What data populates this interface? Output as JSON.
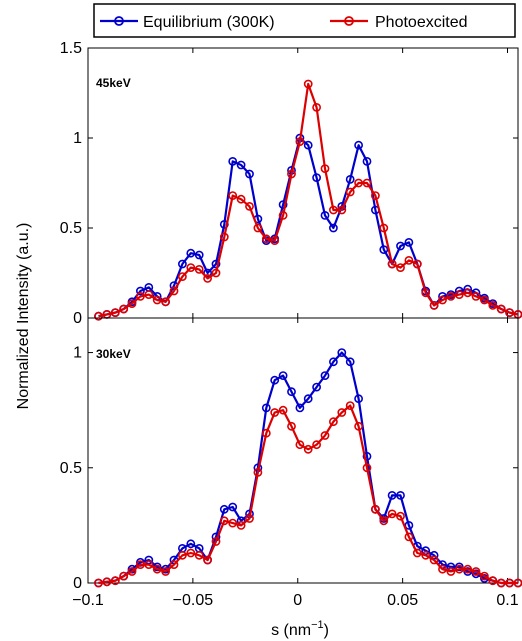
{
  "legend": {
    "series": [
      {
        "name": "Equilibrium (300K)",
        "color": "#0000cc"
      },
      {
        "name": "Photoexcited",
        "color": "#dd0000"
      }
    ]
  },
  "ylabel": "Normalized Intensity (a.u.)",
  "xlabel_main": "s (nm",
  "xlabel_sup": "−1",
  "xlabel_close": ")",
  "chart_data": [
    {
      "type": "line",
      "panel_label": "45keV",
      "xlim": [
        -0.1,
        0.105
      ],
      "ylim": [
        0,
        1.5
      ],
      "yticks": [
        0,
        0.5,
        1,
        1.5
      ],
      "ytick_labels": [
        "0",
        "0.5",
        "1",
        "1.5"
      ],
      "x": [
        -0.095,
        -0.091,
        -0.087,
        -0.083,
        -0.079,
        -0.075,
        -0.071,
        -0.067,
        -0.063,
        -0.059,
        -0.055,
        -0.051,
        -0.047,
        -0.043,
        -0.039,
        -0.035,
        -0.031,
        -0.027,
        -0.023,
        -0.019,
        -0.015,
        -0.011,
        -0.007,
        -0.003,
        0.001,
        0.005,
        0.009,
        0.013,
        0.017,
        0.021,
        0.025,
        0.029,
        0.033,
        0.037,
        0.041,
        0.045,
        0.049,
        0.053,
        0.057,
        0.061,
        0.065,
        0.069,
        0.073,
        0.077,
        0.081,
        0.085,
        0.089,
        0.093,
        0.097,
        0.101,
        0.105
      ],
      "series": [
        {
          "name": "Equilibrium (300K)",
          "color": "#0000cc",
          "values": [
            0.01,
            0.02,
            0.03,
            0.05,
            0.09,
            0.15,
            0.17,
            0.12,
            0.09,
            0.18,
            0.3,
            0.36,
            0.35,
            0.25,
            0.3,
            0.52,
            0.87,
            0.85,
            0.8,
            0.55,
            0.43,
            0.44,
            0.63,
            0.82,
            1.0,
            0.96,
            0.78,
            0.57,
            0.5,
            0.62,
            0.77,
            0.96,
            0.87,
            0.6,
            0.38,
            0.3,
            0.4,
            0.42,
            0.3,
            0.15,
            0.07,
            0.12,
            0.13,
            0.15,
            0.16,
            0.14,
            0.11,
            0.08,
            0.05,
            0.03,
            0.02
          ]
        },
        {
          "name": "Photoexcited",
          "color": "#dd0000",
          "values": [
            0.01,
            0.02,
            0.03,
            0.05,
            0.08,
            0.12,
            0.13,
            0.1,
            0.09,
            0.15,
            0.23,
            0.28,
            0.27,
            0.22,
            0.25,
            0.45,
            0.68,
            0.66,
            0.62,
            0.5,
            0.44,
            0.43,
            0.57,
            0.8,
            0.98,
            1.3,
            1.17,
            0.83,
            0.6,
            0.6,
            0.7,
            0.75,
            0.75,
            0.68,
            0.5,
            0.3,
            0.28,
            0.32,
            0.3,
            0.14,
            0.07,
            0.1,
            0.12,
            0.13,
            0.14,
            0.12,
            0.1,
            0.07,
            0.05,
            0.03,
            0.02
          ]
        }
      ]
    },
    {
      "type": "line",
      "panel_label": "30keV",
      "xlim": [
        -0.1,
        0.105
      ],
      "ylim": [
        0,
        1.15
      ],
      "yticks": [
        0,
        0.5,
        1
      ],
      "ytick_labels": [
        "0",
        "0.5",
        "1"
      ],
      "xticks": [
        -0.1,
        -0.05,
        0,
        0.05,
        0.1
      ],
      "xtick_labels": [
        "−0.1",
        "−0.05",
        "0",
        "0.05",
        "0.1"
      ],
      "x": [
        -0.095,
        -0.091,
        -0.087,
        -0.083,
        -0.079,
        -0.075,
        -0.071,
        -0.067,
        -0.063,
        -0.059,
        -0.055,
        -0.051,
        -0.047,
        -0.043,
        -0.039,
        -0.035,
        -0.031,
        -0.027,
        -0.023,
        -0.019,
        -0.015,
        -0.011,
        -0.007,
        -0.003,
        0.001,
        0.005,
        0.009,
        0.013,
        0.017,
        0.021,
        0.025,
        0.029,
        0.033,
        0.037,
        0.041,
        0.045,
        0.049,
        0.053,
        0.057,
        0.061,
        0.065,
        0.069,
        0.073,
        0.077,
        0.081,
        0.085,
        0.089,
        0.093,
        0.097,
        0.101,
        0.105
      ],
      "series": [
        {
          "name": "Equilibrium (300K)",
          "color": "#0000cc",
          "values": [
            0.0,
            0.005,
            0.01,
            0.03,
            0.06,
            0.09,
            0.1,
            0.07,
            0.06,
            0.1,
            0.15,
            0.17,
            0.15,
            0.1,
            0.2,
            0.32,
            0.33,
            0.27,
            0.3,
            0.5,
            0.76,
            0.88,
            0.9,
            0.83,
            0.76,
            0.8,
            0.85,
            0.9,
            0.96,
            1.0,
            0.96,
            0.8,
            0.55,
            0.32,
            0.28,
            0.38,
            0.38,
            0.25,
            0.16,
            0.14,
            0.12,
            0.08,
            0.07,
            0.07,
            0.05,
            0.04,
            0.02,
            0.01,
            0.0,
            0.0,
            0.0
          ]
        },
        {
          "name": "Photoexcited",
          "color": "#dd0000",
          "values": [
            0.0,
            0.005,
            0.01,
            0.03,
            0.05,
            0.08,
            0.08,
            0.06,
            0.05,
            0.08,
            0.12,
            0.13,
            0.12,
            0.1,
            0.18,
            0.27,
            0.26,
            0.25,
            0.28,
            0.48,
            0.65,
            0.74,
            0.75,
            0.68,
            0.6,
            0.58,
            0.6,
            0.64,
            0.7,
            0.74,
            0.77,
            0.68,
            0.5,
            0.32,
            0.27,
            0.3,
            0.29,
            0.2,
            0.13,
            0.12,
            0.1,
            0.06,
            0.05,
            0.06,
            0.06,
            0.05,
            0.03,
            0.01,
            0.0,
            0.0,
            0.0
          ]
        }
      ]
    }
  ]
}
